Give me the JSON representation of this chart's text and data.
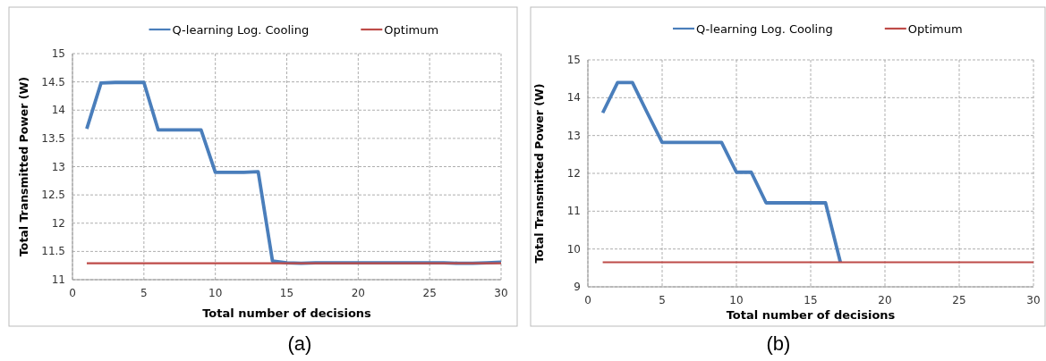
{
  "chart_data": [
    {
      "type": "line",
      "xlabel": "Total number of decisions",
      "ylabel": "Total Transmitted Power (W)",
      "annotations": [
        "(a)"
      ],
      "x": [
        1,
        2,
        3,
        4,
        5,
        6,
        7,
        8,
        9,
        10,
        11,
        12,
        13,
        14,
        15,
        16,
        17,
        18,
        19,
        20,
        21,
        22,
        23,
        24,
        25,
        26,
        27,
        28,
        29,
        30
      ],
      "series": [
        {
          "name": "Q-learning Log. Cooling",
          "color": "#4a7ebb",
          "values": [
            13.67,
            14.48,
            14.49,
            14.49,
            14.49,
            13.65,
            13.65,
            13.65,
            13.65,
            12.9,
            12.9,
            12.9,
            12.91,
            11.33,
            11.3,
            11.29,
            11.3,
            11.3,
            11.3,
            11.3,
            11.3,
            11.3,
            11.3,
            11.3,
            11.3,
            11.3,
            11.29,
            11.29,
            11.3,
            11.31
          ]
        },
        {
          "name": "Optimum",
          "color": "#be4b48",
          "values": [
            11.29,
            11.29,
            11.29,
            11.29,
            11.29,
            11.29,
            11.29,
            11.29,
            11.29,
            11.29,
            11.29,
            11.29,
            11.29,
            11.29,
            11.29,
            11.29,
            11.29,
            11.29,
            11.29,
            11.29,
            11.29,
            11.29,
            11.29,
            11.29,
            11.29,
            11.29,
            11.29,
            11.29,
            11.29,
            11.29
          ]
        }
      ],
      "xlim": [
        0,
        30
      ],
      "xticks": [
        0,
        5,
        10,
        15,
        20,
        25,
        30
      ],
      "ylim": [
        11,
        15
      ],
      "yticks": [
        11,
        11.5,
        12,
        12.5,
        13,
        13.5,
        14,
        14.5,
        15
      ],
      "grid": true,
      "legend": "top",
      "marker": "none",
      "line_style": "solid"
    },
    {
      "type": "line",
      "xlabel": "Total number of decisions",
      "ylabel": "Total Transmitted Power (W)",
      "annotations": [
        "(b)"
      ],
      "x": [
        1,
        2,
        3,
        4,
        5,
        6,
        7,
        8,
        9,
        10,
        11,
        12,
        13,
        14,
        15,
        16,
        17,
        18,
        19,
        20,
        21,
        22,
        23,
        24,
        25,
        26,
        27,
        28,
        29,
        30
      ],
      "series": [
        {
          "name": "Q-learning Log. Cooling",
          "color": "#4a7ebb",
          "values": [
            13.6,
            14.4,
            14.4,
            13.6,
            12.82,
            12.82,
            12.82,
            12.82,
            12.82,
            12.03,
            12.03,
            11.22,
            11.22,
            11.22,
            11.22,
            11.22,
            9.65,
            null,
            null,
            null,
            null,
            null,
            null,
            null,
            null,
            null,
            null,
            null,
            null,
            null
          ]
        },
        {
          "name": "Optimum",
          "color": "#be4b48",
          "values": [
            9.65,
            9.65,
            9.65,
            9.65,
            9.65,
            9.65,
            9.65,
            9.65,
            9.65,
            9.65,
            9.65,
            9.65,
            9.65,
            9.65,
            9.65,
            9.65,
            9.65,
            9.65,
            9.65,
            9.65,
            9.65,
            9.65,
            9.65,
            9.65,
            9.65,
            9.65,
            9.65,
            9.65,
            9.65,
            9.65
          ]
        }
      ],
      "xlim": [
        0,
        30
      ],
      "xticks": [
        0,
        5,
        10,
        15,
        20,
        25,
        30
      ],
      "ylim": [
        9,
        15
      ],
      "yticks": [
        9,
        10,
        11,
        12,
        13,
        14,
        15
      ],
      "grid": true,
      "legend": "top",
      "marker": "none",
      "line_style": "solid"
    }
  ]
}
